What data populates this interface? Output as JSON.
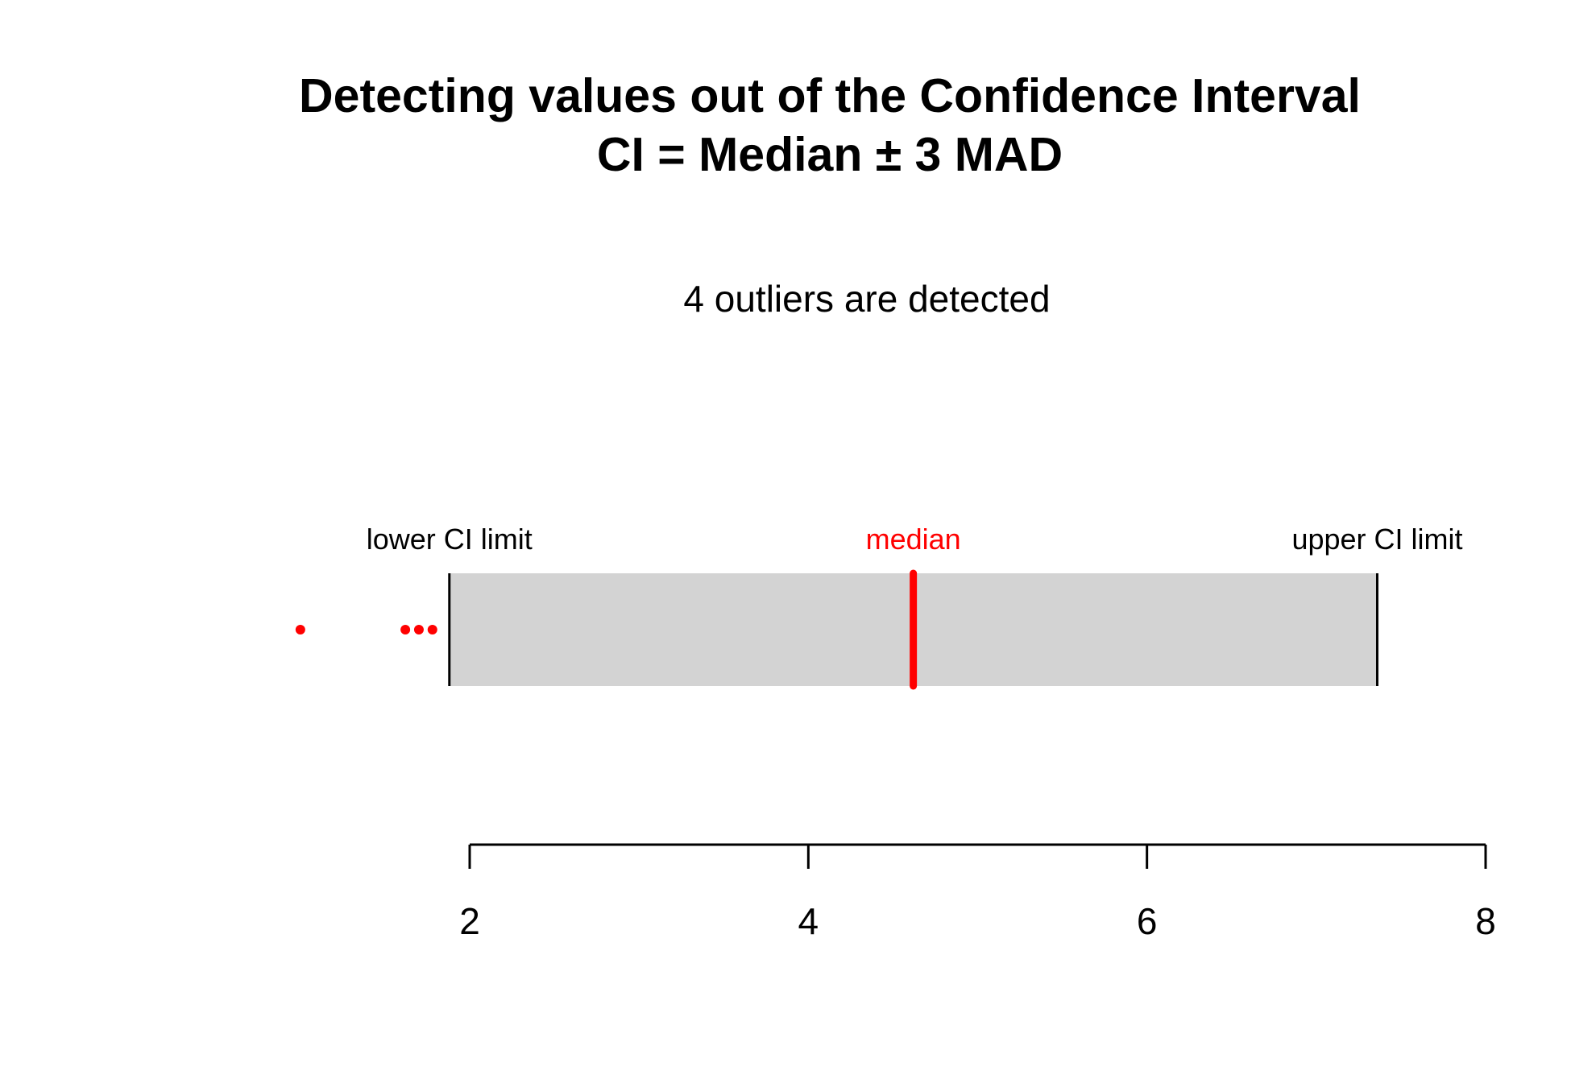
{
  "chart_data": {
    "type": "interval_strip",
    "title": "Detecting values out of the Confidence Interval",
    "subtitle": "CI = Median ± 3  MAD",
    "annotation": "4 outliers are detected",
    "xlim": [
      2,
      8
    ],
    "ticks": [
      2,
      4,
      6,
      8
    ],
    "tick_labels": [
      "2",
      "4",
      "6",
      "8"
    ],
    "median": 4.62,
    "lower_ci_limit": 1.88,
    "upper_ci_limit": 7.36,
    "outliers": [
      1.0,
      1.62,
      1.7,
      1.78
    ],
    "labels": {
      "lower": "lower CI limit",
      "median": "median",
      "upper": "upper CI limit"
    },
    "colors": {
      "band": "#d3d3d3",
      "median": "#ff0000",
      "outlier": "#ff0000",
      "limit": "#000000",
      "axis": "#000000"
    }
  }
}
